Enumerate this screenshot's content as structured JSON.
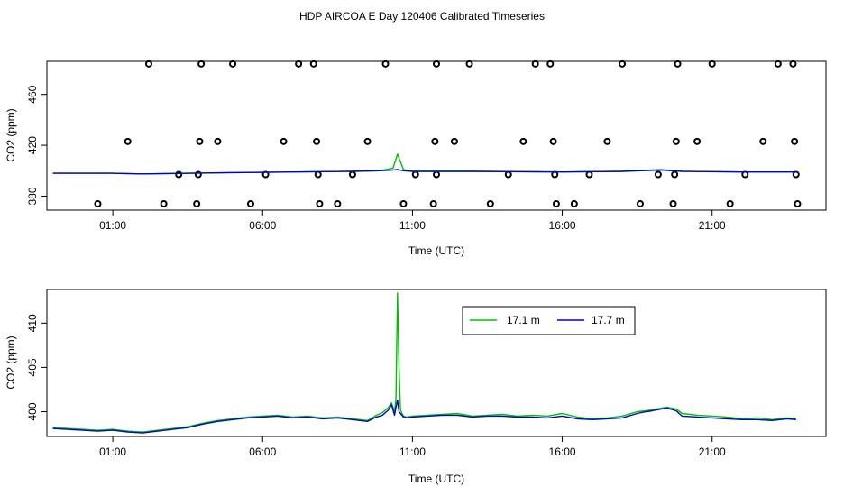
{
  "title": "HDP AIRCOA E  Day 120406  Calibrated Timeseries",
  "colors": {
    "series_green": "#00c000",
    "series_blue": "#0000c8"
  },
  "chart_data": [
    {
      "type": "scatter",
      "xlabel": "Time (UTC)",
      "ylabel": "CO2 (ppm)",
      "xticks": [
        "01:00",
        "06:00",
        "11:00",
        "16:00",
        "21:00"
      ],
      "xtick_values": [
        1,
        6,
        11,
        16,
        21
      ],
      "yticks": [
        "380",
        "420",
        "460"
      ],
      "ytick_values": [
        380,
        420,
        460
      ],
      "xlim": [
        -1.2,
        24.8
      ],
      "ylim": [
        369,
        486
      ],
      "grid": false,
      "series": [
        {
          "color": "#000000",
          "kind": "points",
          "points": [
            [
              0.5,
              374
            ],
            [
              1.5,
              423
            ],
            [
              2.2,
              484
            ],
            [
              2.7,
              374
            ],
            [
              3.2,
              397
            ],
            [
              3.8,
              374
            ],
            [
              3.85,
              397
            ],
            [
              3.9,
              423
            ],
            [
              3.95,
              484
            ],
            [
              4.5,
              423
            ],
            [
              5,
              484
            ],
            [
              5.6,
              374
            ],
            [
              6.1,
              397
            ],
            [
              6.7,
              423
            ],
            [
              7.2,
              484
            ],
            [
              7.7,
              484
            ],
            [
              7.8,
              423
            ],
            [
              7.85,
              397
            ],
            [
              7.9,
              374
            ],
            [
              8.5,
              374
            ],
            [
              9,
              397
            ],
            [
              9.5,
              423
            ],
            [
              10.1,
              484
            ],
            [
              10.7,
              374
            ],
            [
              11.1,
              397
            ],
            [
              11.7,
              374
            ],
            [
              11.75,
              423
            ],
            [
              11.8,
              484
            ],
            [
              11.8,
              397
            ],
            [
              12.4,
              423
            ],
            [
              12.9,
              484
            ],
            [
              13.6,
              374
            ],
            [
              14.2,
              397
            ],
            [
              14.7,
              423
            ],
            [
              15.1,
              484
            ],
            [
              15.6,
              484
            ],
            [
              15.7,
              423
            ],
            [
              15.75,
              397
            ],
            [
              15.8,
              374
            ],
            [
              16.4,
              374
            ],
            [
              16.9,
              397
            ],
            [
              17.5,
              423
            ],
            [
              18,
              484
            ],
            [
              18.6,
              374
            ],
            [
              19.2,
              397
            ],
            [
              19.7,
              374
            ],
            [
              19.75,
              397
            ],
            [
              19.8,
              423
            ],
            [
              19.85,
              484
            ],
            [
              20.5,
              423
            ],
            [
              21,
              484
            ],
            [
              21.6,
              374
            ],
            [
              22.1,
              397
            ],
            [
              22.7,
              423
            ],
            [
              23.2,
              484
            ],
            [
              23.7,
              484
            ],
            [
              23.75,
              423
            ],
            [
              23.8,
              397
            ],
            [
              23.85,
              374
            ]
          ]
        },
        {
          "color": "#00c000",
          "kind": "line",
          "x": [
            -1,
            1,
            2,
            5,
            9,
            9.9,
            10.35,
            10.5,
            10.7,
            11,
            13,
            16,
            18,
            19.3,
            20,
            22,
            23.8
          ],
          "y": [
            398,
            398,
            397.5,
            398.5,
            399.5,
            400,
            402,
            413,
            401,
            399.5,
            399.5,
            399,
            399.5,
            401,
            399.5,
            399,
            399
          ]
        },
        {
          "color": "#0000c8",
          "kind": "line",
          "x": [
            -1,
            1,
            2,
            5,
            9,
            9.9,
            10.35,
            10.5,
            10.7,
            11,
            13,
            16,
            18,
            19.3,
            20,
            22,
            23.8
          ],
          "y": [
            398,
            398,
            397.5,
            398.5,
            399.5,
            400,
            400.5,
            401,
            400,
            399.5,
            399.5,
            399,
            399.5,
            400.5,
            399.5,
            399,
            399
          ]
        }
      ]
    },
    {
      "type": "line",
      "xlabel": "Time (UTC)",
      "ylabel": "CO2 (ppm)",
      "xticks": [
        "01:00",
        "06:00",
        "11:00",
        "16:00",
        "21:00"
      ],
      "xtick_values": [
        1,
        6,
        11,
        16,
        21
      ],
      "yticks": [
        "400",
        "405",
        "410"
      ],
      "ytick_values": [
        400,
        405,
        410
      ],
      "xlim": [
        -1.2,
        24.8
      ],
      "ylim": [
        397.2,
        413.8
      ],
      "grid": false,
      "legend_position": "top-center",
      "series": [
        {
          "name": "17.1 m",
          "color": "#00c000",
          "x": [
            -1,
            0,
            0.5,
            1,
            1.5,
            2,
            2.5,
            3,
            3.5,
            4,
            4.5,
            5,
            5.5,
            6,
            6.5,
            7,
            7.5,
            8,
            8.5,
            9,
            9.5,
            9.8,
            10,
            10.2,
            10.3,
            10.4,
            10.45,
            10.5,
            10.55,
            10.6,
            10.65,
            10.7,
            10.8,
            11,
            11.5,
            12,
            12.5,
            13,
            13.5,
            14,
            14.5,
            15,
            15.5,
            16,
            16.5,
            17,
            17.5,
            18,
            18.5,
            18.8,
            19,
            19.3,
            19.5,
            19.8,
            20,
            20.5,
            21,
            21.5,
            22,
            22.5,
            23,
            23.5,
            23.8
          ],
          "y": [
            398.2,
            398,
            397.9,
            398,
            397.8,
            397.7,
            397.9,
            398.1,
            398.3,
            398.7,
            399,
            399.2,
            399.4,
            399.5,
            399.6,
            399.4,
            399.5,
            399.3,
            399.4,
            399.2,
            399,
            399.6,
            399.9,
            400.5,
            401,
            400,
            401.5,
            413.4,
            405,
            400.2,
            399.8,
            399.5,
            399.4,
            399.5,
            399.6,
            399.7,
            399.8,
            399.5,
            399.6,
            399.7,
            399.5,
            399.6,
            399.5,
            399.8,
            399.4,
            399.2,
            399.3,
            399.5,
            400,
            400.1,
            400.2,
            400.4,
            400.5,
            400.3,
            399.8,
            399.6,
            399.5,
            399.4,
            399.2,
            399.3,
            399.1,
            399.3,
            399.2
          ]
        },
        {
          "name": "17.7 m",
          "color": "#0000c8",
          "x": [
            -1,
            0,
            0.5,
            1,
            1.5,
            2,
            2.5,
            3,
            3.5,
            4,
            4.5,
            5,
            5.5,
            6,
            6.5,
            7,
            7.5,
            8,
            8.5,
            9,
            9.5,
            9.8,
            10,
            10.2,
            10.3,
            10.4,
            10.45,
            10.5,
            10.55,
            10.6,
            10.65,
            10.7,
            10.8,
            11,
            11.5,
            12,
            12.5,
            13,
            13.5,
            14,
            14.5,
            15,
            15.5,
            16,
            16.5,
            17,
            17.5,
            18,
            18.5,
            18.8,
            19,
            19.3,
            19.5,
            19.8,
            20,
            20.5,
            21,
            21.5,
            22,
            22.5,
            23,
            23.5,
            23.8
          ],
          "y": [
            398.1,
            397.9,
            397.8,
            397.9,
            397.7,
            397.6,
            397.8,
            398,
            398.2,
            398.6,
            398.9,
            399.1,
            399.3,
            399.4,
            399.5,
            399.3,
            399.4,
            399.2,
            399.3,
            399.1,
            398.9,
            399.4,
            399.6,
            400.2,
            400.8,
            399.6,
            400.5,
            401.3,
            400,
            399.8,
            399.6,
            399.4,
            399.3,
            399.4,
            399.5,
            399.6,
            399.6,
            399.4,
            399.5,
            399.5,
            399.4,
            399.4,
            399.3,
            399.5,
            399.2,
            399.1,
            399.2,
            399.3,
            399.8,
            400,
            400.1,
            400.3,
            400.4,
            400.1,
            399.5,
            399.4,
            399.3,
            399.2,
            399.1,
            399.1,
            399,
            399.2,
            399.1
          ]
        }
      ]
    }
  ]
}
